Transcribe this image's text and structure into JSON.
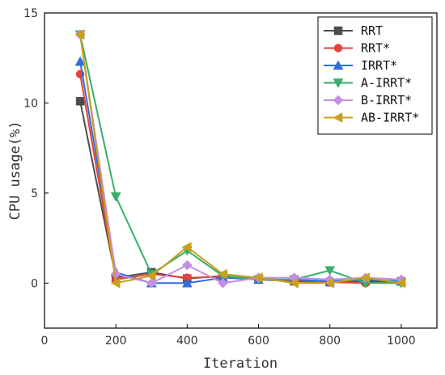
{
  "chart_data": {
    "type": "line",
    "title": "",
    "xlabel": "Iteration",
    "ylabel": "CPU usage(%)",
    "xlim": [
      0,
      1100
    ],
    "ylim": [
      -2.5,
      15
    ],
    "xticks": [
      0,
      200,
      400,
      600,
      800,
      1000
    ],
    "yticks": [
      0,
      5,
      10,
      15
    ],
    "grid": false,
    "legend_position": "top-right",
    "x": [
      100,
      200,
      300,
      400,
      500,
      600,
      700,
      800,
      900,
      1000
    ],
    "series": [
      {
        "name": "RRT",
        "color": "#4d4d4d",
        "marker": "square",
        "values": [
          10.1,
          0.3,
          0.6,
          0.25,
          0.4,
          0.2,
          0.1,
          0.05,
          0.1,
          0.1
        ]
      },
      {
        "name": "RRT*",
        "color": "#e8413a",
        "marker": "circle",
        "values": [
          11.6,
          0.2,
          0.5,
          0.3,
          0.35,
          0.25,
          0.15,
          0.05,
          0.0,
          0.05
        ]
      },
      {
        "name": "IRRT*",
        "color": "#2f6ddc",
        "marker": "triangle-up",
        "values": [
          12.3,
          0.6,
          0.0,
          0.0,
          0.3,
          0.2,
          0.2,
          0.1,
          0.2,
          0.1
        ]
      },
      {
        "name": "A-IRRT*",
        "color": "#36b06b",
        "marker": "triangle-down",
        "values": [
          13.8,
          4.8,
          0.5,
          1.8,
          0.4,
          0.2,
          0.2,
          0.7,
          0.0,
          0.0
        ]
      },
      {
        "name": "B-IRRT*",
        "color": "#c48de4",
        "marker": "diamond",
        "values": [
          13.8,
          0.5,
          0.0,
          1.0,
          0.0,
          0.3,
          0.3,
          0.2,
          0.3,
          0.2
        ]
      },
      {
        "name": "AB-IRRT*",
        "color": "#c9a01c",
        "marker": "triangle-left",
        "values": [
          13.8,
          0.0,
          0.4,
          2.0,
          0.5,
          0.3,
          0.0,
          0.0,
          0.3,
          0.0
        ]
      }
    ]
  }
}
